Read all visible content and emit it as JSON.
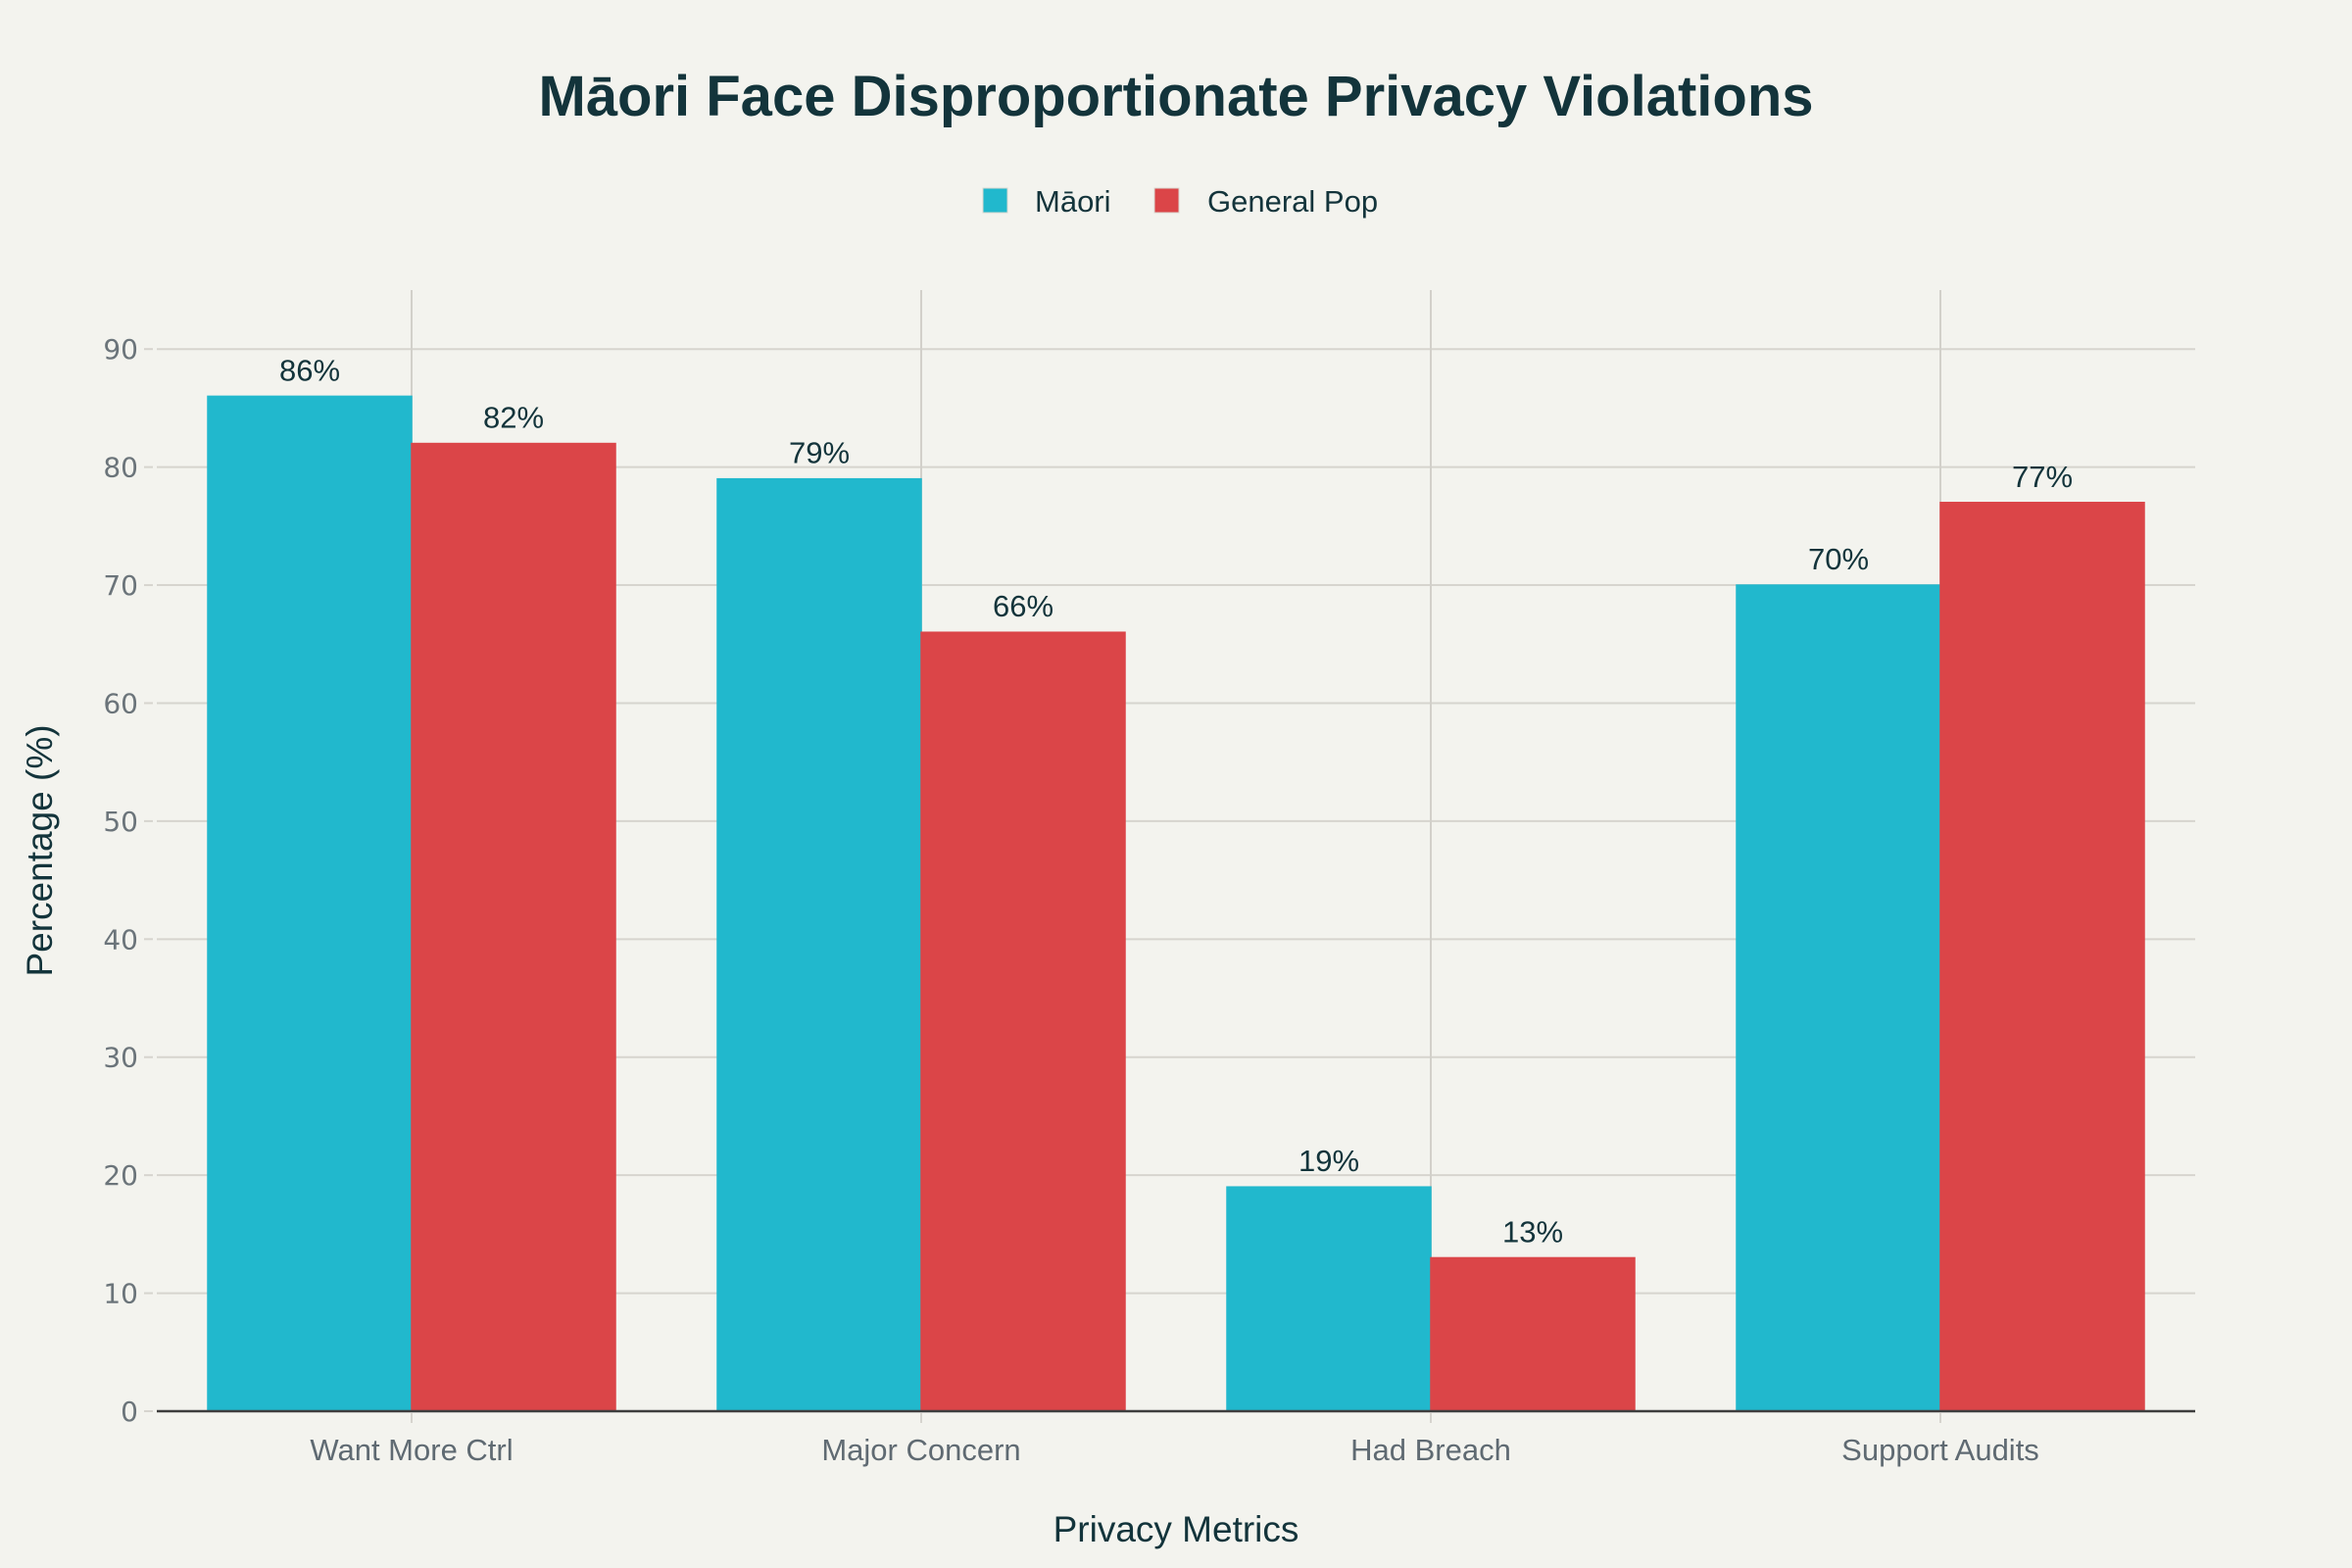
{
  "chart_data": {
    "type": "bar",
    "title": "Māori Face Disproportionate Privacy Violations",
    "xlabel": "Privacy Metrics",
    "ylabel": "Percentage (%)",
    "categories": [
      "Want More Ctrl",
      "Major Concern",
      "Had Breach",
      "Support Audits"
    ],
    "series": [
      {
        "name": "Māori",
        "color": "#21b8cd",
        "values": [
          86,
          79,
          19,
          70
        ]
      },
      {
        "name": "General Pop",
        "color": "#db4548",
        "values": [
          82,
          66,
          13,
          77
        ]
      }
    ],
    "data_label_suffix": "%",
    "ylim": [
      0,
      95
    ],
    "yticks": [
      0,
      10,
      20,
      30,
      40,
      50,
      60,
      70,
      80,
      90
    ],
    "grid": true,
    "legend_position": "top-center",
    "barmode": "grouped"
  }
}
